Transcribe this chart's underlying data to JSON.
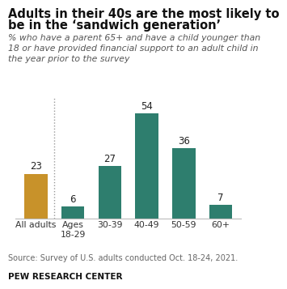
{
  "categories": [
    "All adults",
    "Ages\n18-29",
    "30-39",
    "40-49",
    "50-59",
    "60+"
  ],
  "values": [
    23,
    6,
    27,
    54,
    36,
    7
  ],
  "bar_colors": [
    "#C8922A",
    "#2E7E6E",
    "#2E7E6E",
    "#2E7E6E",
    "#2E7E6E",
    "#2E7E6E"
  ],
  "title_line1": "Adults in their 40s are the most likely to",
  "title_line2": "be in the ‘sandwich generation’",
  "subtitle": "% who have a parent 65+ and have a child younger than\n18 or have provided financial support to an adult child in\nthe year prior to the survey",
  "source": "Source: Survey of U.S. adults conducted Oct. 18-24, 2021.",
  "branding": "PEW RESEARCH CENTER",
  "ylim": [
    0,
    62
  ],
  "bar_width": 0.62,
  "label_fontsize": 8.5,
  "title_fontsize": 10.5,
  "subtitle_fontsize": 7.8,
  "source_fontsize": 7.0,
  "tick_fontsize": 7.8,
  "background_color": "#ffffff"
}
